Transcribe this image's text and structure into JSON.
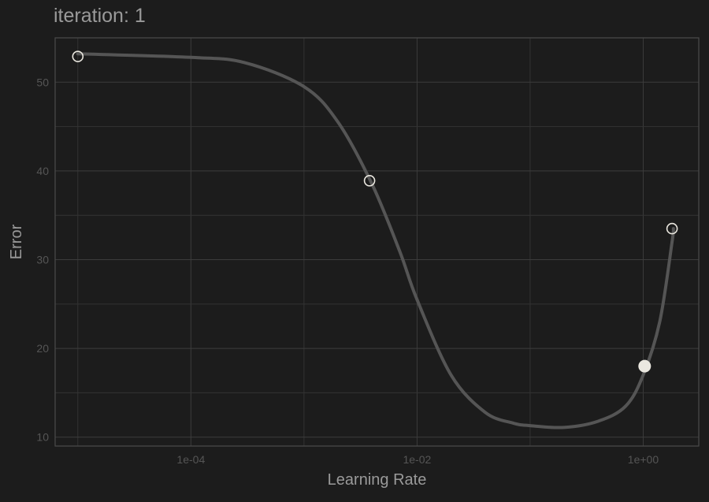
{
  "chart_data": {
    "type": "line",
    "title": "iteration: 1",
    "xlabel": "Learning Rate",
    "ylabel": "Error",
    "x_scale": "log10",
    "x_tick_labels": [
      "1e-04",
      "1e-02",
      "1e+00"
    ],
    "x_tick_values": [
      0.0001,
      0.01,
      1
    ],
    "xlim": [
      6.3e-06,
      3.1
    ],
    "y_ticks": [
      10,
      20,
      30,
      40,
      50
    ],
    "ylim": [
      9,
      55
    ],
    "grid": true,
    "legend": "none",
    "series": [
      {
        "curve": [
          {
            "x": 1e-05,
            "y": 53.2
          },
          {
            "x": 0.0001,
            "y": 52.8
          },
          {
            "x": 0.0003,
            "y": 52.2
          },
          {
            "x": 0.001,
            "y": 49.5
          },
          {
            "x": 0.002,
            "y": 45.5
          },
          {
            "x": 0.004,
            "y": 38.5
          },
          {
            "x": 0.007,
            "y": 31.0
          },
          {
            "x": 0.01,
            "y": 25.5
          },
          {
            "x": 0.02,
            "y": 17.0
          },
          {
            "x": 0.04,
            "y": 12.8
          },
          {
            "x": 0.07,
            "y": 11.6
          },
          {
            "x": 0.1,
            "y": 11.3
          },
          {
            "x": 0.2,
            "y": 11.1
          },
          {
            "x": 0.4,
            "y": 11.8
          },
          {
            "x": 0.7,
            "y": 13.5
          },
          {
            "x": 1.0,
            "y": 17.0
          },
          {
            "x": 1.4,
            "y": 23.0
          },
          {
            "x": 1.8,
            "y": 32.0
          },
          {
            "x": 1.85,
            "y": 33.5
          }
        ],
        "points": [
          {
            "x": 1e-05,
            "y": 52.9,
            "filled": false
          },
          {
            "x": 0.0038,
            "y": 38.9,
            "filled": false
          },
          {
            "x": 1.8,
            "y": 33.5,
            "filled": false
          },
          {
            "x": 1.03,
            "y": 18.0,
            "filled": true
          }
        ],
        "colors": {
          "curve": "#555555",
          "point_stroke": "#ebe8e0",
          "point_fill_active": "#ebe8e0"
        }
      }
    ]
  }
}
